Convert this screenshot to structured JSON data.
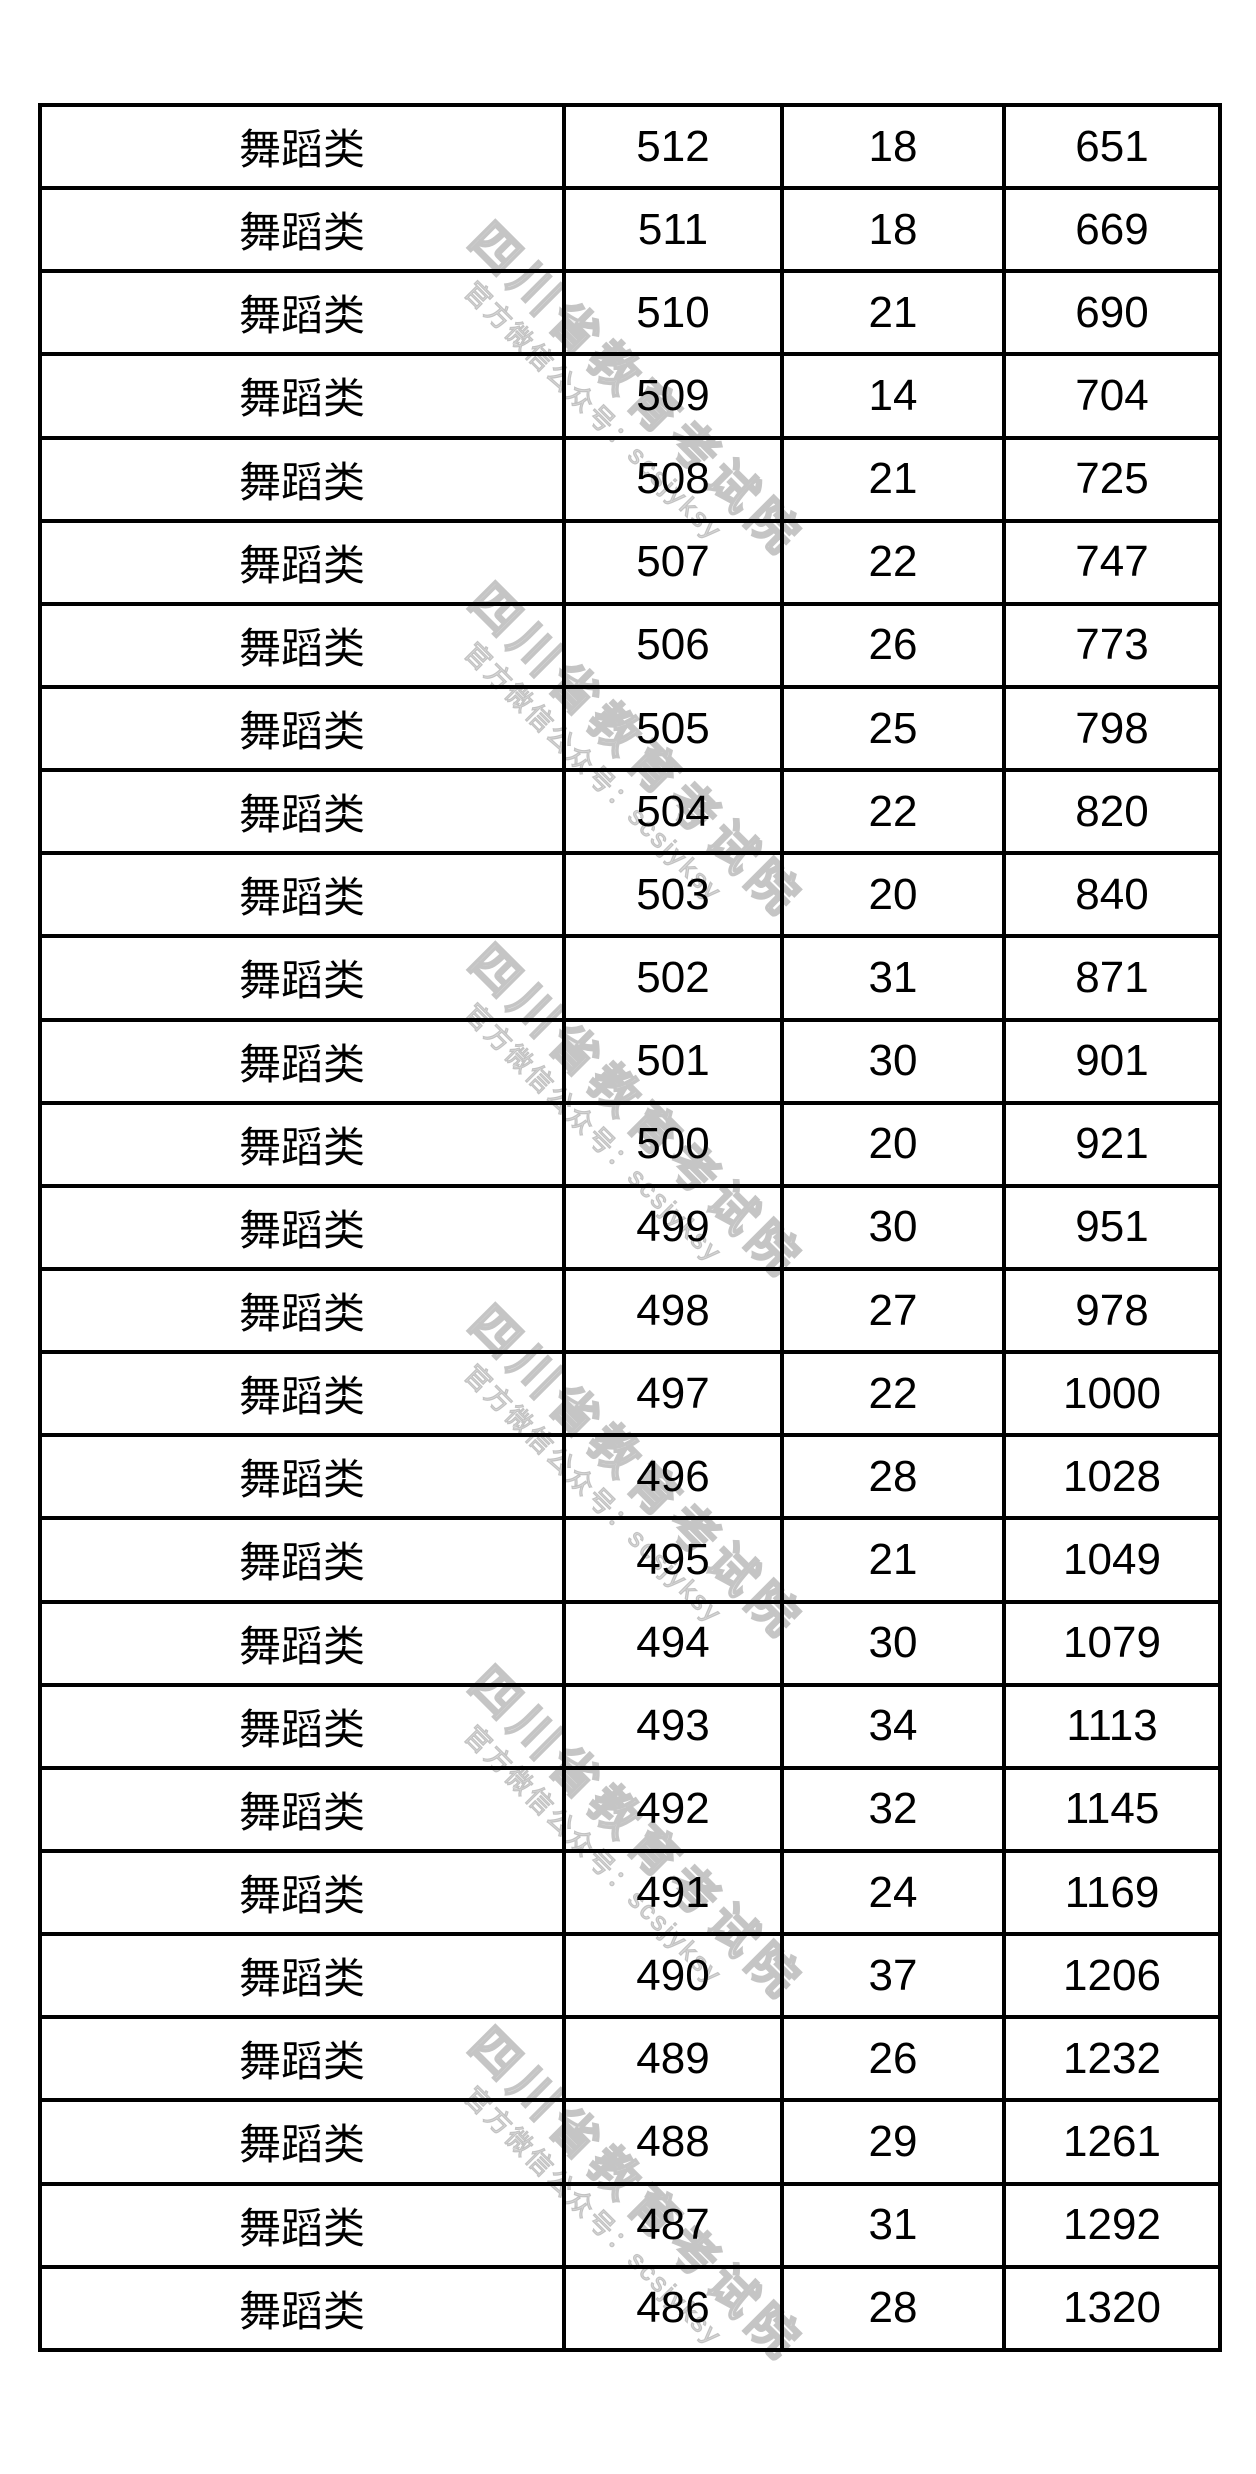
{
  "watermark": {
    "title": "四川省教育考试院",
    "subtitle": "官方微信公众号：scsjyksy",
    "color": "#c5c5c5"
  },
  "table": {
    "border_color": "#000000",
    "rows": [
      {
        "category": "舞蹈类",
        "score": "512",
        "count": "18",
        "cumulative": "651"
      },
      {
        "category": "舞蹈类",
        "score": "511",
        "count": "18",
        "cumulative": "669"
      },
      {
        "category": "舞蹈类",
        "score": "510",
        "count": "21",
        "cumulative": "690"
      },
      {
        "category": "舞蹈类",
        "score": "509",
        "count": "14",
        "cumulative": "704"
      },
      {
        "category": "舞蹈类",
        "score": "508",
        "count": "21",
        "cumulative": "725"
      },
      {
        "category": "舞蹈类",
        "score": "507",
        "count": "22",
        "cumulative": "747"
      },
      {
        "category": "舞蹈类",
        "score": "506",
        "count": "26",
        "cumulative": "773"
      },
      {
        "category": "舞蹈类",
        "score": "505",
        "count": "25",
        "cumulative": "798"
      },
      {
        "category": "舞蹈类",
        "score": "504",
        "count": "22",
        "cumulative": "820"
      },
      {
        "category": "舞蹈类",
        "score": "503",
        "count": "20",
        "cumulative": "840"
      },
      {
        "category": "舞蹈类",
        "score": "502",
        "count": "31",
        "cumulative": "871"
      },
      {
        "category": "舞蹈类",
        "score": "501",
        "count": "30",
        "cumulative": "901"
      },
      {
        "category": "舞蹈类",
        "score": "500",
        "count": "20",
        "cumulative": "921"
      },
      {
        "category": "舞蹈类",
        "score": "499",
        "count": "30",
        "cumulative": "951"
      },
      {
        "category": "舞蹈类",
        "score": "498",
        "count": "27",
        "cumulative": "978"
      },
      {
        "category": "舞蹈类",
        "score": "497",
        "count": "22",
        "cumulative": "1000"
      },
      {
        "category": "舞蹈类",
        "score": "496",
        "count": "28",
        "cumulative": "1028"
      },
      {
        "category": "舞蹈类",
        "score": "495",
        "count": "21",
        "cumulative": "1049"
      },
      {
        "category": "舞蹈类",
        "score": "494",
        "count": "30",
        "cumulative": "1079"
      },
      {
        "category": "舞蹈类",
        "score": "493",
        "count": "34",
        "cumulative": "1113"
      },
      {
        "category": "舞蹈类",
        "score": "492",
        "count": "32",
        "cumulative": "1145"
      },
      {
        "category": "舞蹈类",
        "score": "491",
        "count": "24",
        "cumulative": "1169"
      },
      {
        "category": "舞蹈类",
        "score": "490",
        "count": "37",
        "cumulative": "1206"
      },
      {
        "category": "舞蹈类",
        "score": "489",
        "count": "26",
        "cumulative": "1232"
      },
      {
        "category": "舞蹈类",
        "score": "488",
        "count": "29",
        "cumulative": "1261"
      },
      {
        "category": "舞蹈类",
        "score": "487",
        "count": "31",
        "cumulative": "1292"
      },
      {
        "category": "舞蹈类",
        "score": "486",
        "count": "28",
        "cumulative": "1320"
      }
    ]
  }
}
